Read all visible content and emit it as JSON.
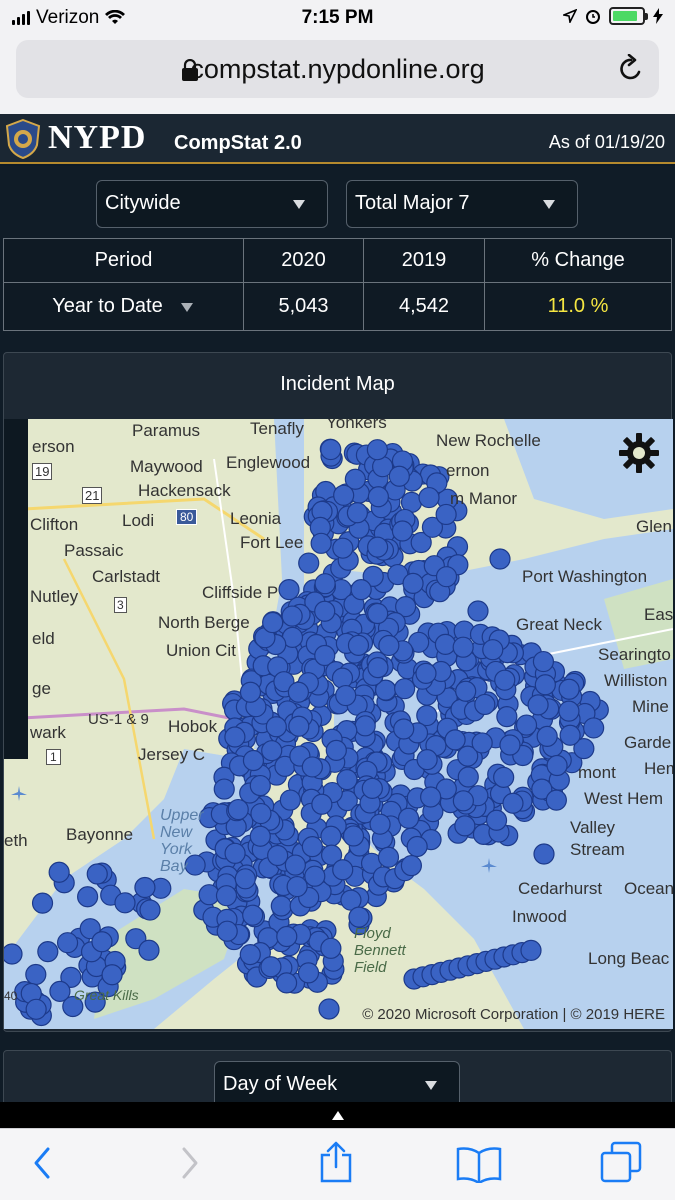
{
  "status_bar": {
    "carrier": "Verizon",
    "time": "7:15 PM",
    "battery_level": 0.85
  },
  "browser": {
    "url": "compstat.nypdonline.org"
  },
  "header": {
    "brand": "NYPD",
    "subtitle": "CompStat 2.0",
    "as_of": "As of 01/19/20"
  },
  "filters": {
    "area": "Citywide",
    "crime": "Total Major 7"
  },
  "stats_table": {
    "headers": [
      "Period",
      "2020",
      "2019",
      "% Change"
    ],
    "row": {
      "period": "Year to Date",
      "y2020": "5,043",
      "y2019": "4,542",
      "change": "11.0 %"
    }
  },
  "incident_map": {
    "title": "Incident Map",
    "copyright": "© 2020 Microsoft Corporation | © 2019 HERE",
    "labels": [
      "Paramus",
      "Tenafly",
      "Yonkers",
      "New Rochelle",
      "erson",
      "Maywood",
      "Englewood",
      "ernon",
      "Hackensack",
      "m Manor",
      "Clifton",
      "Lodi",
      "Leonia",
      "Glen",
      "Passaic",
      "Fort Lee",
      "Carlstadt",
      "Port Washington",
      "Nutley",
      "Cliffside P",
      "North Berge",
      "Great Neck",
      "East",
      "Union Cit",
      "Searingto",
      "Williston",
      "Mine",
      "wark",
      "Hobok",
      "Jersey C",
      "Garde",
      "mont",
      "Hem",
      "West Hem",
      "Bayonne",
      "eth",
      "Upper New York Bay",
      "Valley Stream",
      "Cedarhurst",
      "Ocean",
      "Inwood",
      "Floyd Bennett Field",
      "Long Beac",
      "Great Kills",
      "US-1 & 9",
      "19",
      "21",
      "80",
      "3",
      "1",
      "ge",
      "eld",
      "40"
    ],
    "colors": {
      "dot_fill": "#3a63c4",
      "dot_stroke": "#1d3a8a"
    }
  },
  "bottom_filter": {
    "label": "Day of Week"
  },
  "colors": {
    "accent_gold": "#b58a2e",
    "pct_change": "#f5e642",
    "ios_blue": "#1a7cf5"
  }
}
